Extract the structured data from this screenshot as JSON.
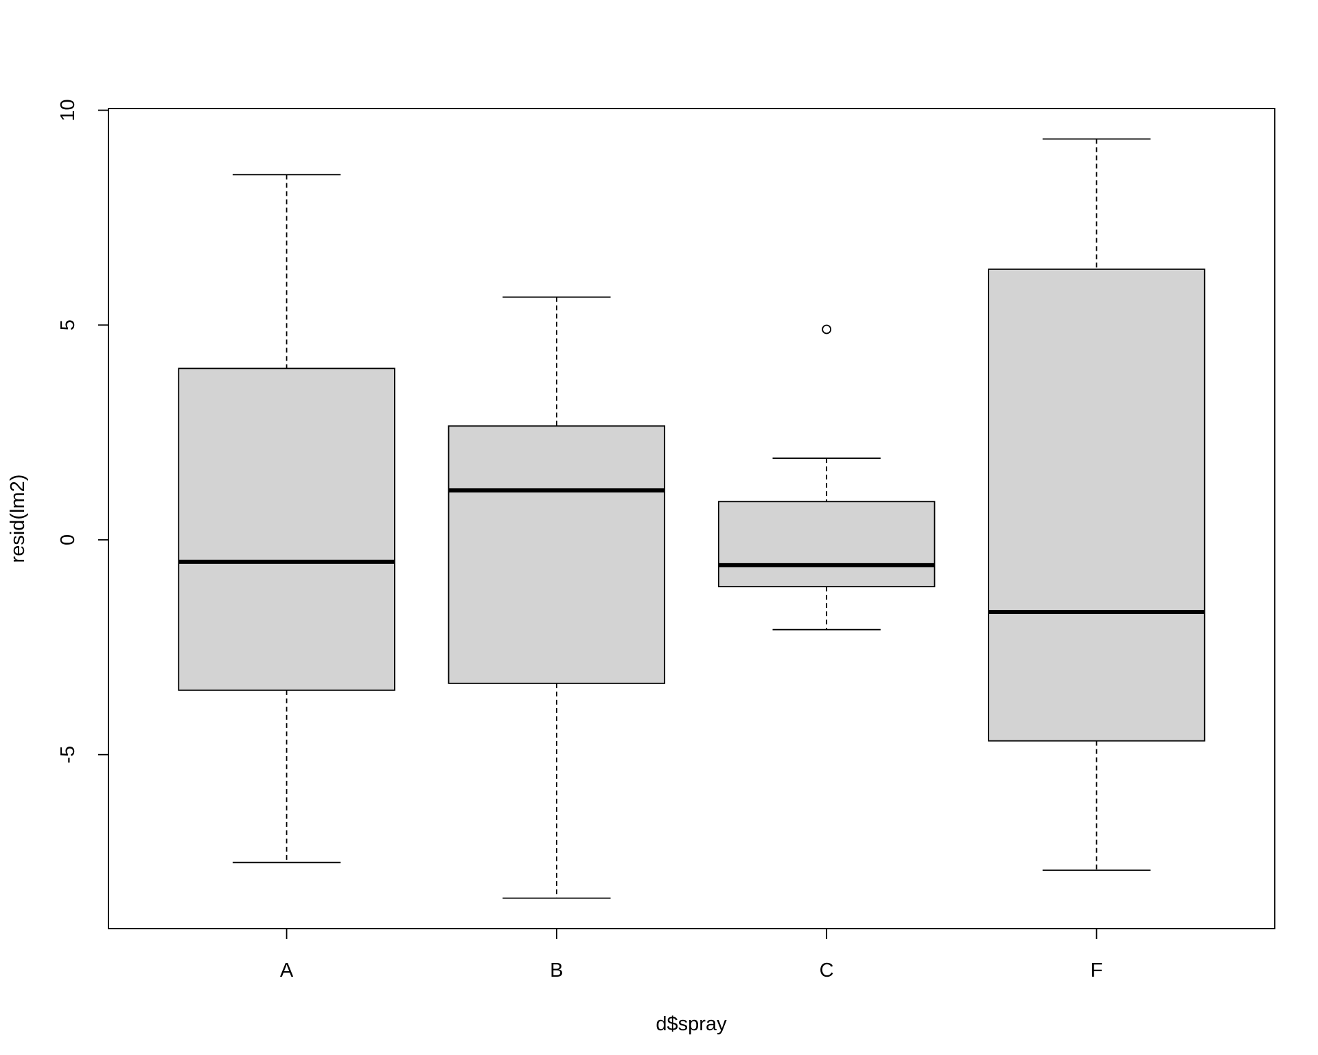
{
  "chart_data": {
    "type": "box",
    "x_label": "d$spray",
    "y_label": "resid(lm2)",
    "categories": [
      "A",
      "B",
      "C",
      "F"
    ],
    "whisker_low": [
      -7.51,
      -8.34,
      -2.09,
      -7.69
    ],
    "q1": [
      -3.5,
      -3.34,
      -1.09,
      -4.68
    ],
    "median": [
      -0.51,
      1.15,
      -0.59,
      -1.68
    ],
    "q3": [
      3.99,
      2.65,
      0.89,
      6.3
    ],
    "whisker_high": [
      8.5,
      5.65,
      1.9,
      9.33
    ],
    "outliers": [
      [],
      [],
      [
        4.9
      ],
      []
    ],
    "color": "#d3d3d3",
    "ylim": [
      -9.05,
      10.04
    ],
    "yticks": [
      -5,
      0,
      5,
      10
    ]
  }
}
